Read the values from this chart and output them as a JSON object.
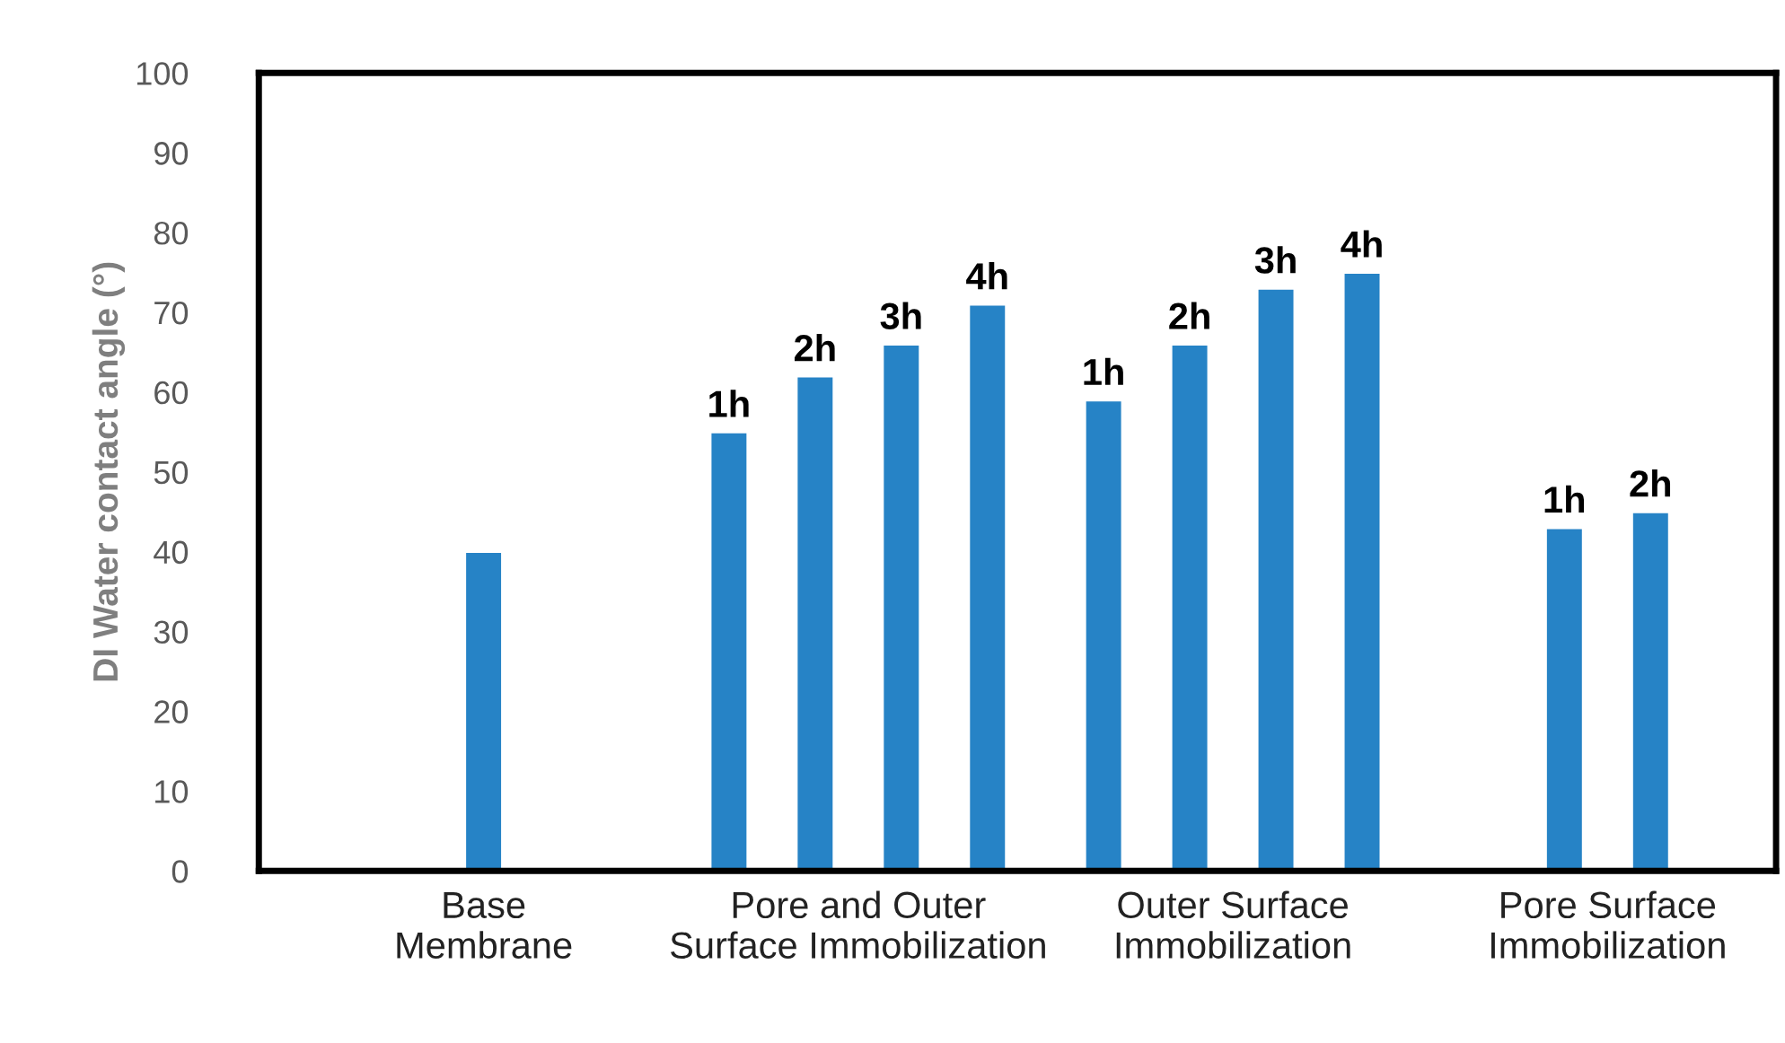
{
  "chart_data": {
    "type": "bar",
    "ylabel": "DI Water contact angle (°)",
    "categories": [
      "Base\nMembrane",
      "Pore and Outer\nSurface Immobilization",
      "Outer Surface\nImmobilization",
      "Pore Surface\nImmobilization"
    ],
    "series": [
      {
        "color": "#2683c6",
        "values": [
          40,
          null,
          null,
          null
        ]
      },
      {
        "name": "1h",
        "color": "#2683c6",
        "values": [
          null,
          55,
          59,
          43
        ]
      },
      {
        "name": "2h",
        "color": "#2683c6",
        "values": [
          null,
          62,
          66,
          45
        ]
      },
      {
        "name": "3h",
        "color": "#2683c6",
        "values": [
          null,
          66,
          73,
          null
        ]
      },
      {
        "name": "4h",
        "color": "#2683c6",
        "values": [
          null,
          71,
          75,
          null
        ]
      }
    ],
    "ylim": [
      0,
      100
    ],
    "yticks": [
      0,
      10,
      20,
      30,
      40,
      50,
      60,
      70,
      80,
      90,
      100
    ],
    "grid": false,
    "legend": false
  }
}
